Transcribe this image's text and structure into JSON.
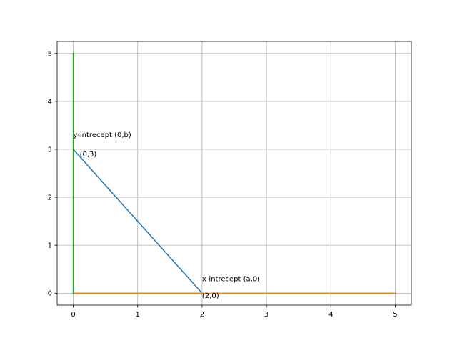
{
  "chart_data": {
    "type": "line",
    "title": "",
    "xlabel": "",
    "ylabel": "",
    "xlim": [
      -0.25,
      5.25
    ],
    "ylim": [
      -0.25,
      5.25
    ],
    "xticks": [
      0,
      1,
      2,
      3,
      4,
      5
    ],
    "yticks": [
      0,
      1,
      2,
      3,
      4,
      5
    ],
    "xtick_labels": [
      "0",
      "1",
      "2",
      "3",
      "4",
      "5"
    ],
    "ytick_labels": [
      "0",
      "1",
      "2",
      "3",
      "4",
      "5"
    ],
    "grid": true,
    "legend": false,
    "series": [
      {
        "color": "#1f77b4",
        "x": [
          0,
          2
        ],
        "y": [
          3,
          0
        ]
      },
      {
        "color": "#ff7f0e",
        "x": [
          0,
          5
        ],
        "y": [
          0,
          0
        ]
      },
      {
        "color": "#2ca02c",
        "x": [
          0,
          0
        ],
        "y": [
          0,
          5
        ]
      }
    ],
    "annotations": [
      {
        "text": "y-intrecept (0,b)",
        "x": 0,
        "y": 3.25
      },
      {
        "text": "(0,3)",
        "x": 0.1,
        "y": 2.85
      },
      {
        "text": "x-intrecept (a,0)",
        "x": 2,
        "y": 0.25
      },
      {
        "text": "(2,0)",
        "x": 2,
        "y": -0.1
      }
    ]
  }
}
